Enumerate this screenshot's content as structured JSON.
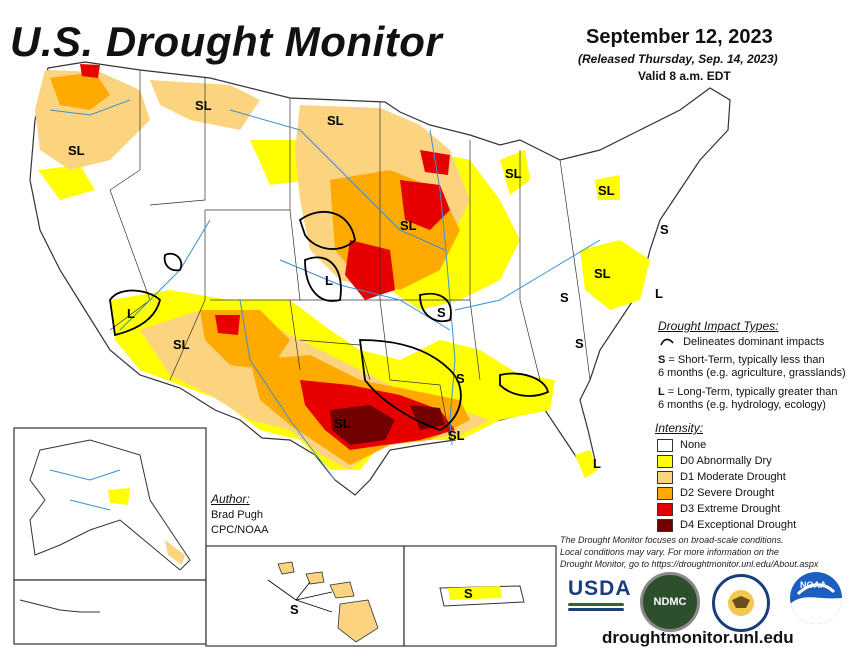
{
  "header": {
    "title": "U.S. Drought Monitor",
    "date": "September 12, 2023",
    "released": "(Released Thursday, Sep. 14, 2023)",
    "valid": "Valid 8 a.m. EDT"
  },
  "impact_types": {
    "title": "Drought Impact Types:",
    "delineates": "Delineates dominant impacts",
    "short_term_code": "S",
    "short_term_text": "= Short-Term, typically less than",
    "short_term_text2": "6 months (e.g. agriculture, grasslands)",
    "long_term_code": "L",
    "long_term_text": "= Long-Term, typically greater than",
    "long_term_text2": "6 months (e.g. hydrology, ecology)"
  },
  "intensity": {
    "title": "Intensity:",
    "items": [
      {
        "label": "None",
        "color": "#ffffff"
      },
      {
        "label": "D0 Abnormally Dry",
        "color": "#ffff00"
      },
      {
        "label": "D1 Moderate Drought",
        "color": "#fcd37f"
      },
      {
        "label": "D2 Severe Drought",
        "color": "#ffaa00"
      },
      {
        "label": "D3 Extreme Drought",
        "color": "#e60000"
      },
      {
        "label": "D4 Exceptional Drought",
        "color": "#730000"
      }
    ]
  },
  "author": {
    "label": "Author:",
    "name": "Brad Pugh",
    "org": "CPC/NOAA"
  },
  "note": {
    "line1": "The Drought Monitor focuses on broad-scale conditions.",
    "line2": "Local conditions may vary. For more information on the",
    "line3": "Drought Monitor, go to https://droughtmonitor.unl.edu/About.aspx"
  },
  "logos": {
    "usda": "USDA",
    "ndmc": "NDMC",
    "noaa": "NOAA"
  },
  "url": "droughtmonitor.unl.edu",
  "map_labels": {
    "wa": "SL",
    "mt": "SL",
    "nd": "SL",
    "ia": "SL",
    "mi": "SL",
    "ny": "SL",
    "ks": "L",
    "mo": "S",
    "nj": "S",
    "va": "SL",
    "nc": "S",
    "de": "L",
    "sc": "S",
    "az": "L",
    "nm": "SL",
    "tx": "SL",
    "ms": "S",
    "la": "SL",
    "fl": "L",
    "hi": "S",
    "pr": "S"
  }
}
